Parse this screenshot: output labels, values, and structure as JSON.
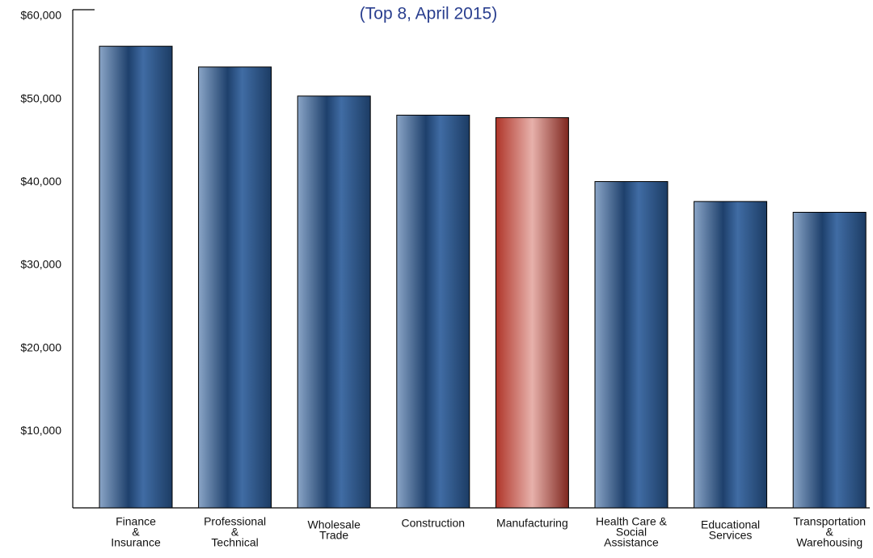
{
  "chart_data": {
    "type": "bar",
    "title": "(Top 8, April 2015)",
    "categories": [
      [
        "Finance",
        "&",
        "Insurance"
      ],
      [
        "Professional",
        "&",
        "Technical"
      ],
      [
        "Wholesale",
        "Trade"
      ],
      [
        "Construction"
      ],
      [
        "Manufacturing"
      ],
      [
        "Health Care &",
        "Social",
        "Assistance"
      ],
      [
        "Educational",
        "Services"
      ],
      [
        "Transportation",
        "&",
        "Warehousing"
      ]
    ],
    "values": [
      55600,
      53100,
      49600,
      47300,
      47000,
      39300,
      36900,
      35600
    ],
    "colors": [
      "#2b5c9a",
      "#2b5c9a",
      "#2b5c9a",
      "#2b5c9a",
      "#c23b2e",
      "#2b5c9a",
      "#2b5c9a",
      "#2b5c9a"
    ],
    "ylim": [
      0,
      60000
    ],
    "yticks": [
      {
        "value": 10000,
        "label": "$10,000"
      },
      {
        "value": 20000,
        "label": "$20,000"
      },
      {
        "value": 30000,
        "label": "$30,000"
      },
      {
        "value": 40000,
        "label": "$40,000"
      },
      {
        "value": 50000,
        "label": "$50,000"
      },
      {
        "value": 60000,
        "label": "$60,000"
      }
    ],
    "grid": false
  }
}
